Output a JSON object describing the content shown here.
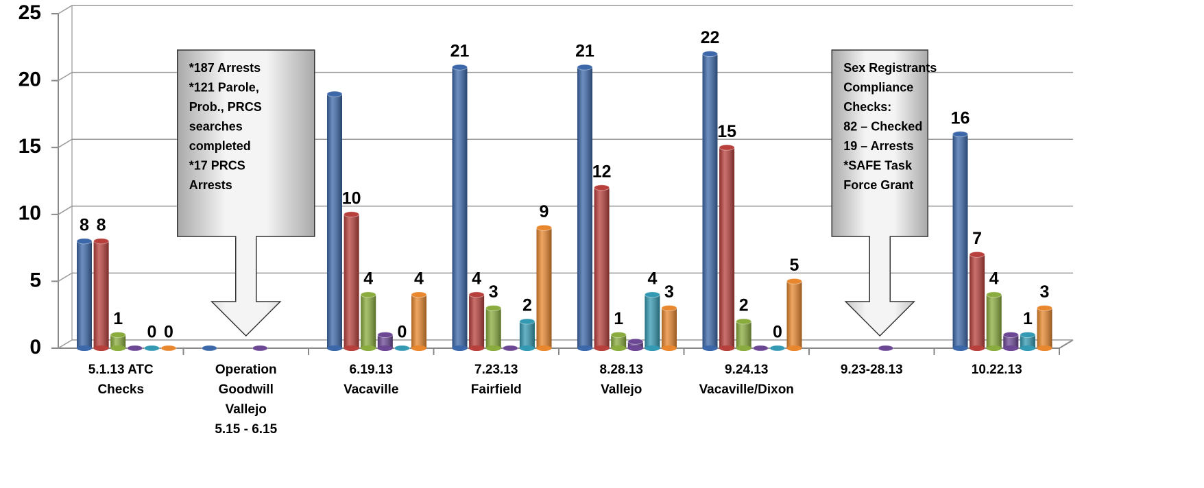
{
  "chart_data": {
    "type": "bar",
    "categories": [
      [
        "5.1.13    ATC",
        "Checks"
      ],
      [
        "Operation",
        "Goodwill",
        "Vallejo",
        "5.15 - 6.15"
      ],
      [
        "6.19.13",
        "Vacaville"
      ],
      [
        "7.23.13",
        "Fairfield"
      ],
      [
        "8.28.13",
        "Vallejo"
      ],
      [
        "9.24.13",
        "Vacaville/Dixon"
      ],
      [
        "9.23-28.13"
      ],
      [
        "10.22.13"
      ]
    ],
    "series": [
      {
        "color": "#3c68aa",
        "values": [
          8,
          0,
          19,
          21,
          21,
          22,
          null,
          16
        ],
        "value_labels": [
          "8",
          null,
          null,
          "21",
          "21",
          "22",
          null,
          "16"
        ]
      },
      {
        "color": "#b8403c",
        "values": [
          8,
          null,
          10,
          4,
          12,
          15,
          null,
          7
        ],
        "value_labels": [
          "8",
          null,
          "10",
          "4",
          "12",
          "15",
          null,
          "7"
        ]
      },
      {
        "color": "#8aac3e",
        "values": [
          1,
          null,
          4,
          3,
          1,
          2,
          null,
          4
        ],
        "value_labels": [
          "1",
          null,
          "4",
          "3",
          "1",
          "2",
          null,
          "4"
        ]
      },
      {
        "color": "#6c4894",
        "values": [
          0,
          0,
          1,
          0,
          0.5,
          0,
          0,
          1
        ],
        "value_labels": [
          null,
          null,
          null,
          null,
          null,
          null,
          null,
          null
        ]
      },
      {
        "color": "#3499b2",
        "values": [
          0,
          null,
          0,
          2,
          4,
          0,
          null,
          1
        ],
        "value_labels": [
          "0",
          null,
          "0",
          "2",
          "4",
          "0",
          null,
          "1"
        ]
      },
      {
        "color": "#e8872e",
        "values": [
          0,
          null,
          4,
          9,
          3,
          5,
          null,
          3
        ],
        "value_labels": [
          "0",
          null,
          "4",
          "9",
          "3",
          "5",
          null,
          "3"
        ]
      }
    ],
    "ylim": [
      0,
      25
    ],
    "yticks": [
      0,
      5,
      10,
      15,
      20,
      25
    ],
    "grid": true,
    "annotations": [
      {
        "category": 1,
        "lines": [
          "*187 Arrests",
          "*121 Parole,",
          "Prob., PRCS",
          "   searches",
          "completed",
          "*17 PRCS",
          "Arrests"
        ]
      },
      {
        "category": 6,
        "lines": [
          "Sex Registrants",
          "Compliance",
          "Checks:",
          "82 – Checked",
          "19 – Arrests",
          "*SAFE Task",
          "Force Grant"
        ]
      }
    ]
  }
}
